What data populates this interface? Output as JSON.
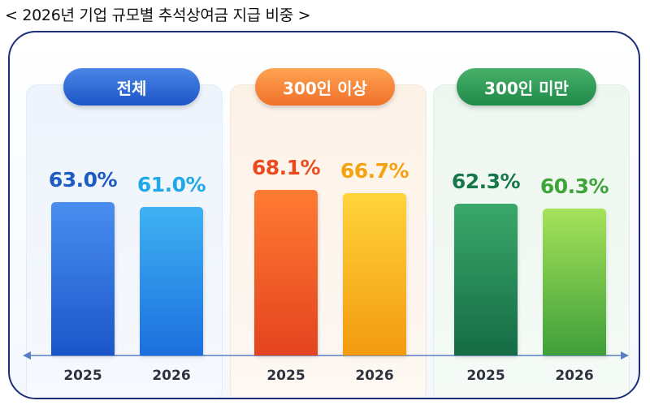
{
  "title": "< 2026년 기업 규모별 추석상여금 지급 비중 >",
  "chart_data": {
    "type": "bar",
    "title": "< 2026년 기업 규모별 추석상여금 지급 비중 >",
    "unit": "%",
    "ylim": [
      0,
      100
    ],
    "grid": false,
    "groups": [
      {
        "label": "전체",
        "accent": "#2f6fd8",
        "bars": [
          {
            "year": "2025",
            "value": 63.0,
            "value_text": "63.0%",
            "label_color": "#1d5bc4",
            "colors": [
              "#4a8ef0",
              "#1a56c9"
            ]
          },
          {
            "year": "2026",
            "value": 61.0,
            "value_text": "61.0%",
            "label_color": "#1fa8ea",
            "colors": [
              "#3fb2f3",
              "#1c6fde"
            ]
          }
        ]
      },
      {
        "label": "300인 이상",
        "accent": "#f5863c",
        "bars": [
          {
            "year": "2025",
            "value": 68.1,
            "value_text": "68.1%",
            "label_color": "#ee4a1f",
            "colors": [
              "#ff7b32",
              "#e4431f"
            ]
          },
          {
            "year": "2026",
            "value": 66.7,
            "value_text": "66.7%",
            "label_color": "#f5a20f",
            "colors": [
              "#ffd43a",
              "#f39a10"
            ]
          }
        ]
      },
      {
        "label": "300인 미만",
        "accent": "#2e9b55",
        "bars": [
          {
            "year": "2025",
            "value": 62.3,
            "value_text": "62.3%",
            "label_color": "#16784a",
            "colors": [
              "#3aa86a",
              "#156b45"
            ]
          },
          {
            "year": "2026",
            "value": 60.3,
            "value_text": "60.3%",
            "label_color": "#3fa53a",
            "colors": [
              "#a6e25a",
              "#3f9f3a"
            ]
          }
        ]
      }
    ]
  }
}
